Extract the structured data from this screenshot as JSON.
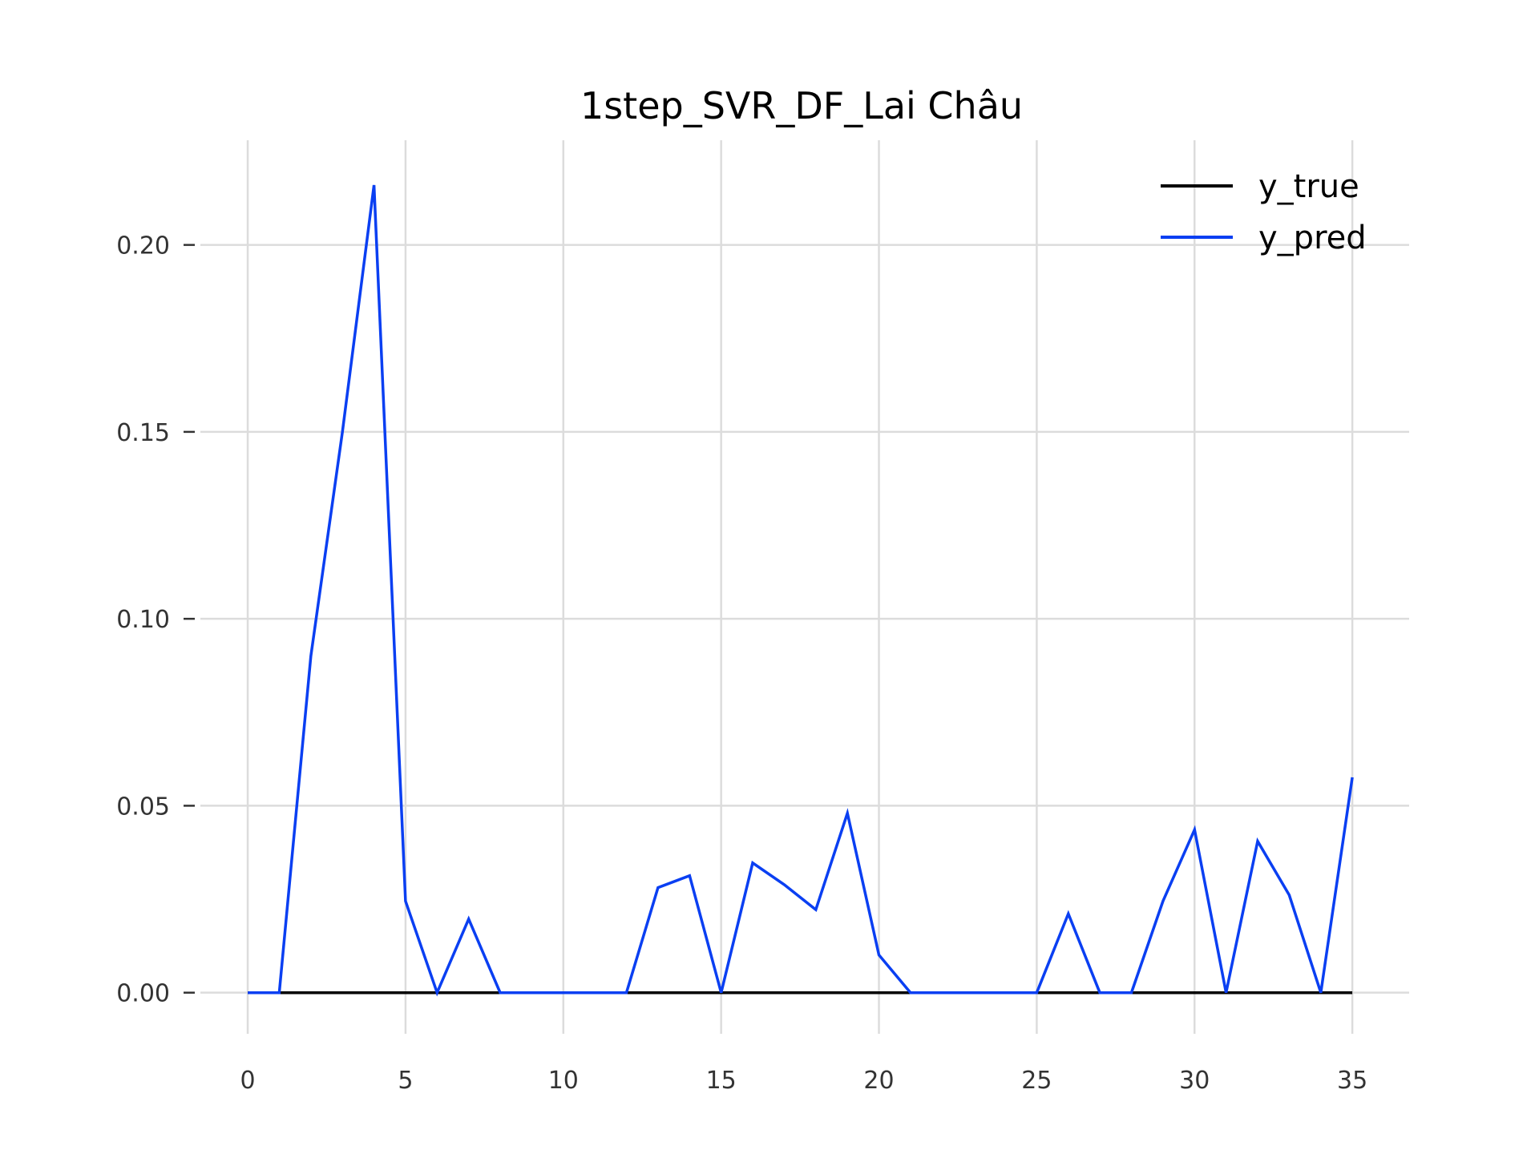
{
  "chart_data": {
    "type": "line",
    "title": "1step_SVR_DF_Lai Châu",
    "xlabel": "",
    "ylabel": "",
    "x": [
      0,
      1,
      2,
      3,
      4,
      5,
      6,
      7,
      8,
      9,
      10,
      11,
      12,
      13,
      14,
      15,
      16,
      17,
      18,
      19,
      20,
      21,
      22,
      23,
      24,
      25,
      26,
      27,
      28,
      29,
      30,
      31,
      32,
      33,
      34,
      35
    ],
    "xlim": [
      -1.5,
      36.8
    ],
    "ylim": [
      -0.011,
      0.228
    ],
    "x_ticks": [
      0,
      5,
      10,
      15,
      20,
      25,
      30,
      35
    ],
    "x_tick_labels": [
      "0",
      "5",
      "10",
      "15",
      "20",
      "25",
      "30",
      "35"
    ],
    "y_ticks": [
      0.0,
      0.05,
      0.1,
      0.15,
      0.2
    ],
    "y_tick_labels": [
      "0.00",
      "0.05",
      "0.10",
      "0.15",
      "0.20"
    ],
    "grid": true,
    "legend_position": "top-right",
    "series": [
      {
        "name": "y_true",
        "color": "#000000",
        "values": [
          0,
          0,
          0,
          0,
          0,
          0,
          0,
          0,
          0,
          0,
          0,
          0,
          0,
          0,
          0,
          0,
          0,
          0,
          0,
          0,
          0,
          0,
          0,
          0,
          0,
          0,
          0,
          0,
          0,
          0,
          0,
          0,
          0,
          0,
          0,
          0
        ]
      },
      {
        "name": "y_pred",
        "color": "#0a3ff2",
        "values": [
          0,
          0,
          0.09,
          0.15,
          0.216,
          0.0245,
          0,
          0.0197,
          0,
          0,
          0,
          0,
          0,
          0.0281,
          0.0313,
          0,
          0.0347,
          0.0289,
          0.0222,
          0.048,
          0.0101,
          0,
          0,
          0,
          0,
          0,
          0.0211,
          0,
          0,
          0.0245,
          0.0436,
          0,
          0.0405,
          0.0261,
          0,
          0.0576
        ]
      }
    ]
  }
}
